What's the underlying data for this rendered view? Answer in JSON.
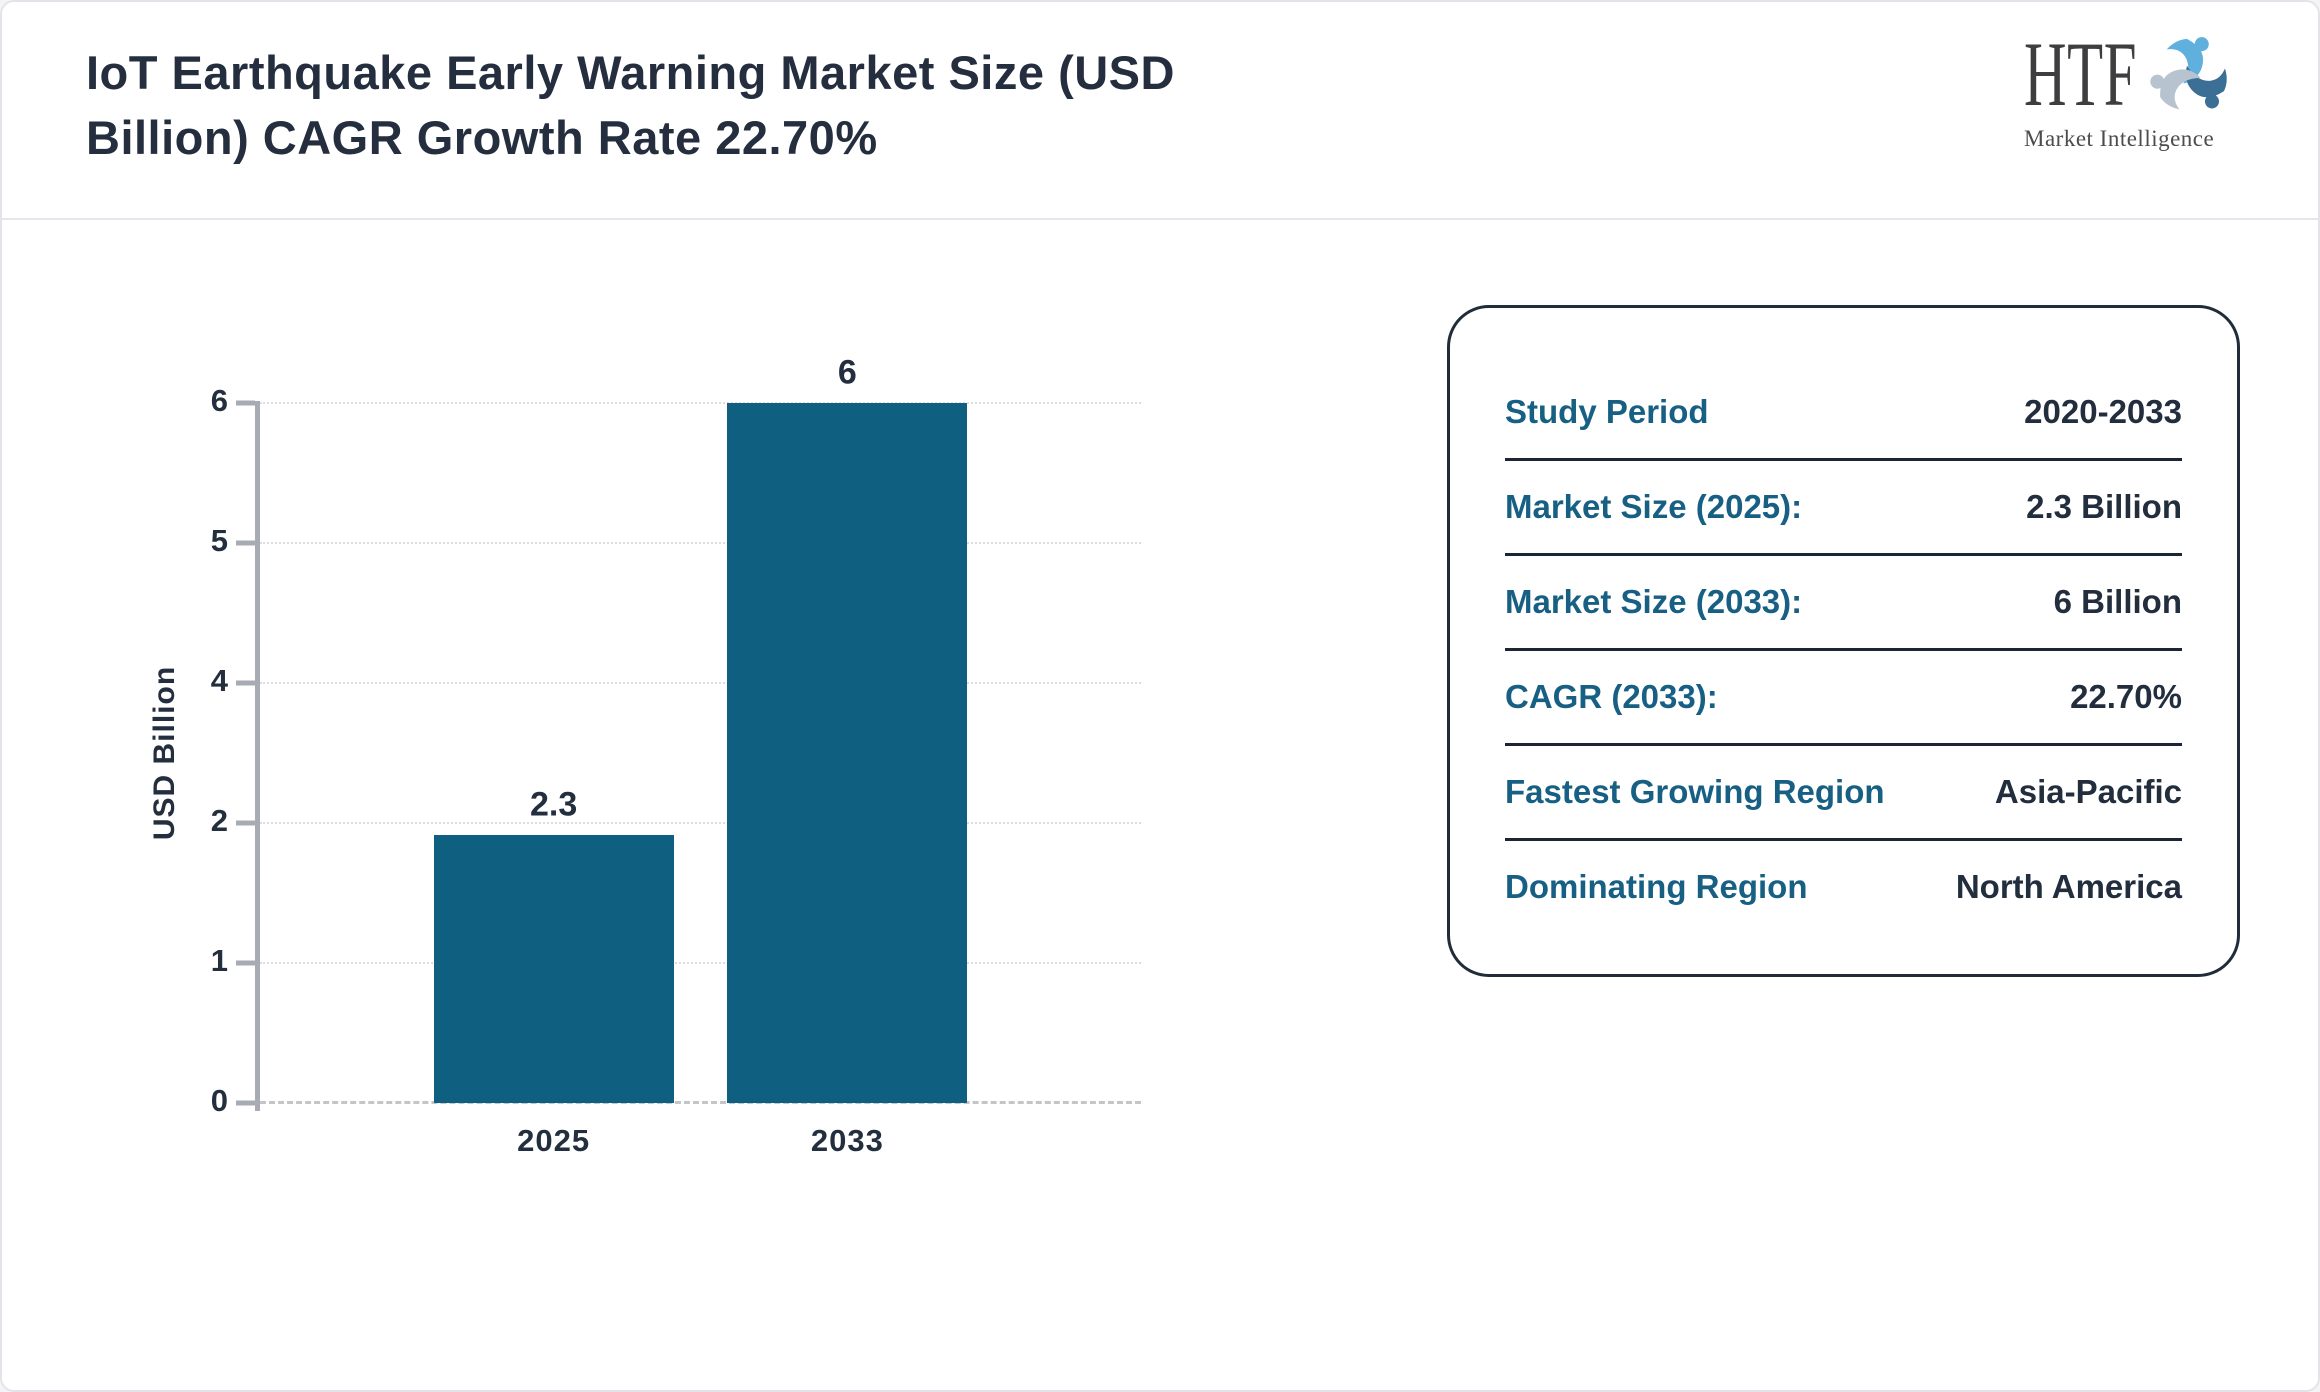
{
  "header": {
    "title_lines": [
      "IoT Earthquake Early Warning Market Size (USD",
      "Billion) CAGR Growth Rate 22.70%"
    ],
    "logo": {
      "name": "HTF",
      "tagline": "Market Intelligence"
    }
  },
  "chart_data": {
    "type": "bar",
    "title": "IoT Earthquake Early Warning Market Size (USD Billion) CAGR Growth Rate 22.70%",
    "categories": [
      "2025",
      "2033"
    ],
    "values": [
      2.3,
      6
    ],
    "bar_labels": [
      "2.3",
      "6"
    ],
    "xlabel": "",
    "ylabel": "USD Billion",
    "ylim": [
      0,
      6
    ],
    "ytick_labels": [
      "0",
      "1",
      "2",
      "4",
      "5",
      "6"
    ],
    "legend": "none",
    "grid": "horizontal-dotted",
    "bar_color": "#0f5f81"
  },
  "info_card": {
    "rows": [
      {
        "label": "Study Period",
        "value": "2020-2033"
      },
      {
        "label": "Market Size (2025):",
        "value": "2.3 Billion"
      },
      {
        "label": "Market Size (2033):",
        "value": "6 Billion"
      },
      {
        "label": "CAGR (2033):",
        "value": "22.70%"
      },
      {
        "label": "Fastest Growing Region",
        "value": "Asia-Pacific"
      },
      {
        "label": "Dominating Region",
        "value": "North America"
      }
    ]
  },
  "colors": {
    "accent_teal": "#176084",
    "navy_text": "#232e3e",
    "bar": "#0f5f81",
    "card_border": "#202c3a",
    "logo_light_blue": "#5fb0dc",
    "logo_steel_blue": "#3c6f96",
    "logo_gray_blue": "#b7c3ce"
  }
}
